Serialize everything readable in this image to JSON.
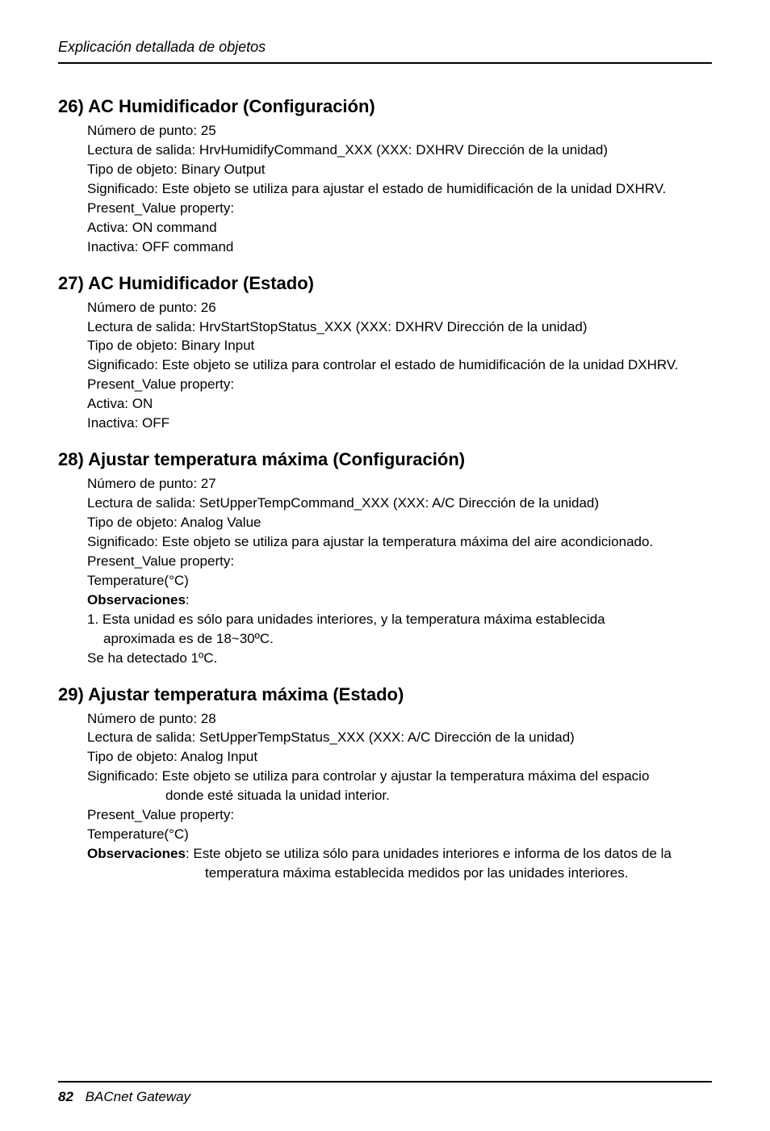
{
  "header": {
    "running_title": "Explicación detallada de objetos"
  },
  "sections": [
    {
      "heading": "26) AC Humidificador (Configuración)",
      "lines": [
        "Número de punto: 25",
        "Lectura de salida: HrvHumidifyCommand_XXX (XXX: DXHRV Dirección de la unidad)",
        "Tipo de objeto: Binary Output",
        "Significado: Este objeto se utiliza para ajustar el estado de humidificación de la unidad DXHRV.",
        "Present_Value property:",
        "Activa: ON command",
        "Inactiva: OFF command"
      ]
    },
    {
      "heading": "27) AC Humidificador (Estado)",
      "lines": [
        "Número de punto: 26",
        "Lectura de salida: HrvStartStopStatus_XXX (XXX: DXHRV Dirección de la unidad)",
        "Tipo de objeto: Binary Input",
        "Significado: Este objeto se utiliza para controlar el estado de humidificación de la unidad DXHRV.",
        "Present_Value property:",
        "Activa: ON",
        "Inactiva: OFF"
      ]
    },
    {
      "heading": "28) Ajustar temperatura máxima (Configuración)",
      "lines": [
        "Número de punto: 27",
        "Lectura de salida: SetUpperTempCommand_XXX (XXX: A/C Dirección de la unidad)",
        "Tipo de objeto: Analog Value",
        "Significado: Este objeto se utiliza para ajustar la temperatura máxima del aire acondicionado.",
        "Present_Value property:",
        "Temperature(°C)"
      ],
      "obs_label": "Observaciones",
      "obs_colon": ":",
      "obs_lines": [
        "1. Esta unidad es sólo para unidades interiores, y la temperatura máxima establecida",
        "aproximada es de 18~30ºC."
      ],
      "trailing": "Se ha detectado 1ºC."
    },
    {
      "heading": "29) Ajustar temperatura máxima (Estado)",
      "lines": [
        "Número de punto: 28",
        "Lectura de salida: SetUpperTempStatus_XXX (XXX: A/C Dirección de la unidad)",
        "Tipo de objeto: Analog Input",
        "Significado: Este objeto se utiliza para controlar y ajustar la temperatura máxima del espacio"
      ],
      "sig_cont": "donde esté situada la unidad interior.",
      "lines2": [
        "Present_Value property:",
        "Temperature(°C)"
      ],
      "obs_label": "Observaciones",
      "obs_inline": ": Este objeto se utiliza sólo para unidades interiores e informa de los datos de la",
      "obs_cont": "temperatura máxima establecida medidos por las unidades interiores."
    }
  ],
  "footer": {
    "page": "82",
    "book": "BACnet Gateway"
  }
}
